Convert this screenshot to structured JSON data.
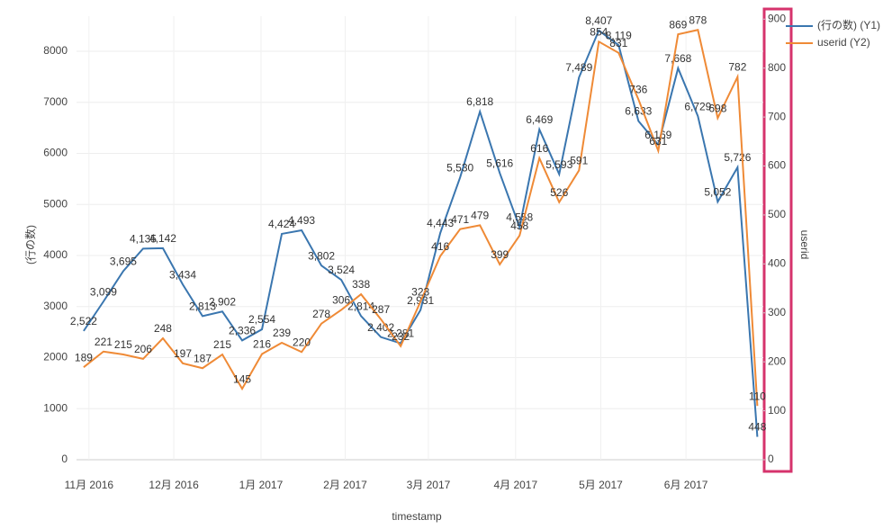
{
  "chart_data": {
    "type": "line",
    "x_title": "timestamp",
    "y_title": "(行の数)",
    "y2_title": "userid",
    "x": [
      0,
      1,
      2,
      3,
      4,
      5,
      6,
      7,
      8,
      9,
      10,
      11,
      12,
      13,
      14,
      15,
      16,
      17,
      18,
      19,
      20,
      21,
      22,
      23,
      24,
      25,
      26,
      27,
      28,
      29,
      30,
      31,
      32,
      33,
      34
    ],
    "xlim": [
      -0.36,
      34.3
    ],
    "xticks": [
      {
        "value": 0.27,
        "label": "11月 2016"
      },
      {
        "value": 4.55,
        "label": "12月 2016"
      },
      {
        "value": 8.95,
        "label": "1月 2017"
      },
      {
        "value": 13.2,
        "label": "2月 2017"
      },
      {
        "value": 17.4,
        "label": "3月 2017"
      },
      {
        "value": 21.8,
        "label": "4月 2017"
      },
      {
        "value": 26.1,
        "label": "5月 2017"
      },
      {
        "value": 30.4,
        "label": "6月 2017"
      }
    ],
    "ylim": [
      0,
      8687
    ],
    "yticks": [
      0,
      1000,
      2000,
      3000,
      4000,
      5000,
      6000,
      7000,
      8000
    ],
    "y2lim": [
      0,
      906
    ],
    "y2ticks": [
      0,
      100,
      200,
      300,
      400,
      500,
      600,
      700,
      800,
      900
    ],
    "grid": true,
    "legend": "top-right",
    "series": [
      {
        "name": "(行の数) (Y1)",
        "color": "#3a76af",
        "axis": "y",
        "values": [
          2522,
          3099,
          3695,
          4135,
          4142,
          3434,
          2813,
          2902,
          2336,
          2554,
          4424,
          4493,
          3802,
          3524,
          2814,
          2402,
          2281,
          2931,
          4443,
          5530,
          6818,
          5616,
          4558,
          6469,
          5593,
          7489,
          8407,
          8119,
          6633,
          6169,
          7668,
          6729,
          5052,
          5726,
          448
        ],
        "value_labels": [
          "2,522",
          "3,099",
          "3,695",
          "4,135",
          "4,142",
          "3,434",
          "2,813",
          "2,902",
          "2,336",
          "2,554",
          "4,424",
          "4,493",
          "3,802",
          "3,524",
          "2,814",
          "2,402",
          "2,281",
          "2,931",
          "4,443",
          "5,530",
          "6,818",
          "5,616",
          "4,558",
          "6,469",
          "5,593",
          "7,489",
          "8,407",
          "8,119",
          "6,633",
          "6,169",
          "7,668",
          "6,729",
          "5,052",
          "5,726",
          "448"
        ]
      },
      {
        "name": "userid (Y2)",
        "color": "#ef8a36",
        "axis": "y2",
        "values": [
          189,
          221,
          215,
          206,
          248,
          197,
          187,
          215,
          145,
          216,
          239,
          220,
          278,
          306,
          338,
          287,
          232,
          323,
          416,
          471,
          479,
          399,
          458,
          616,
          526,
          591,
          854,
          831,
          736,
          631,
          869,
          878,
          698,
          782,
          110
        ]
      }
    ]
  }
}
